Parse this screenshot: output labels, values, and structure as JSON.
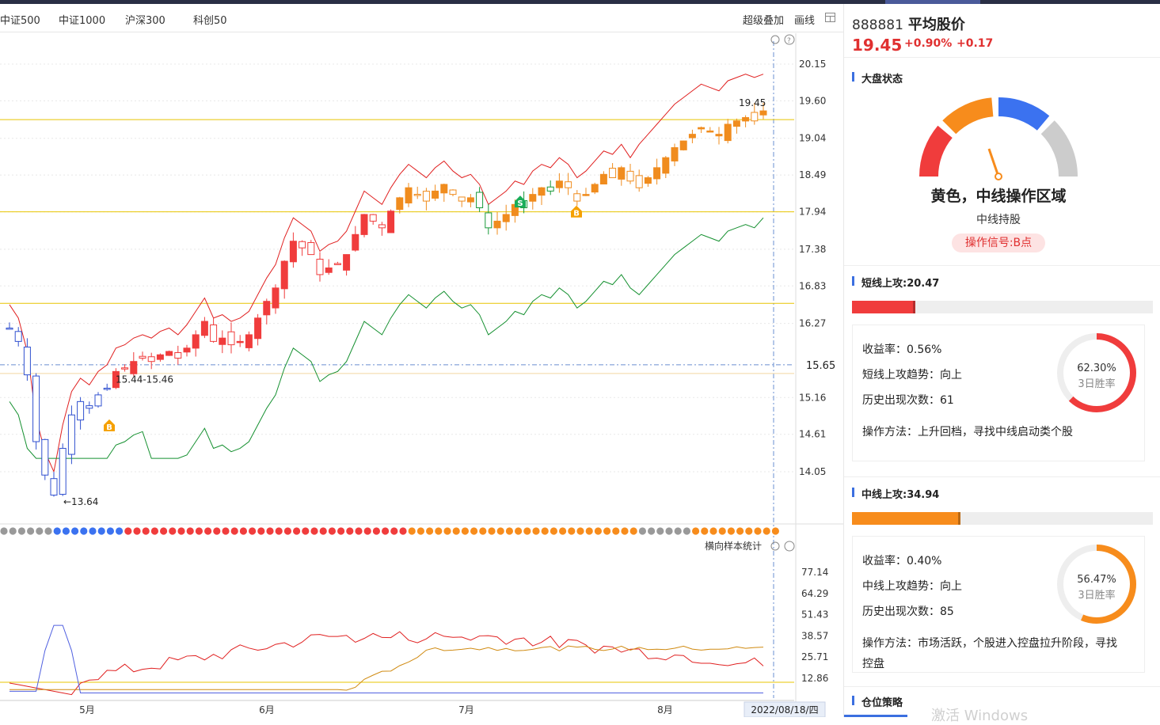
{
  "tabs": [
    "中证500",
    "中证1000",
    "沪深300",
    "科创50"
  ],
  "toolbar": {
    "overlay": "超级叠加",
    "draw": "画线",
    "layout_icon": "grid-icon"
  },
  "chart_data": {
    "type": "candlestick",
    "price_axis": [
      "20.15",
      "19.60",
      "19.04",
      "18.49",
      "17.94",
      "17.38",
      "16.83",
      "16.27",
      "15.65",
      "15.16",
      "14.61",
      "14.05"
    ],
    "current_price_tag": "15.65",
    "annotations": {
      "last_price": "19.45",
      "low": "13.64",
      "range": "15.44-15.46"
    },
    "signals": [
      {
        "type": "B",
        "color": "#f5a000"
      },
      {
        "type": "S",
        "color": "#1aad5a"
      },
      {
        "type": "B",
        "color": "#f5a000"
      }
    ],
    "horizontal_levels": [
      19.32,
      17.94,
      16.57,
      15.65
    ],
    "dots_sequence": "ggggggbbbbbbbbrrrrrrrrrrrrrrrrrrrrrrrrrrrrrrrrooooooooooooooooooooooooooggggggooooooooooooooooooooooooooooooooooooo",
    "indicator_label": "横向样本统计",
    "indicator_axis": [
      "77.14",
      "64.29",
      "51.43",
      "38.57",
      "25.71",
      "12.86"
    ],
    "x_labels": [
      "5月",
      "6月",
      "7月",
      "8月"
    ],
    "date_label": "2022/08/18/四",
    "colors": {
      "up": "#f03c3c",
      "down": "#ffffff",
      "up_border": "#f03c3c",
      "down_border": "#1a9a3a",
      "orange": "#f08c1e",
      "blue": "#3050d0"
    }
  },
  "stock": {
    "code": "888881",
    "name": "平均股价",
    "price": "19.45",
    "pct": "+0.90%",
    "change": "+0.17"
  },
  "market": {
    "heading": "大盘状态",
    "gauge_colors": [
      "#f03c3c",
      "#f78c1c",
      "#3b72f0",
      "#cccccc"
    ],
    "status": "黄色，中线操作区域",
    "advice": "中线持股",
    "signal": "操作信号:B点"
  },
  "short": {
    "heading": "短线上攻:20.47",
    "bar_color": "#f03c3c",
    "bar_fill": 0.21,
    "lines": [
      "收益率：0.56%",
      "短线上攻趋势：向上",
      "历史出现次数：61",
      "操作方法：上升回档，寻找中线启动类个股"
    ],
    "ring_value": "62.30%",
    "ring_ratio": 0.623,
    "ring_label": "3日胜率"
  },
  "mid": {
    "heading": "中线上攻:34.94",
    "bar_color": "#f78c1c",
    "bar_fill": 0.36,
    "lines": [
      "收益率：0.40%",
      "中线上攻趋势：向上",
      "历史出现次数：85",
      "操作方法：市场活跃，个股进入控盘拉升阶段，寻找",
      "控盘"
    ],
    "ring_value": "56.47%",
    "ring_ratio": 0.5647,
    "ring_label": "3日胜率"
  },
  "position": {
    "heading": "仓位策略"
  },
  "watermark": "激活 Windows"
}
